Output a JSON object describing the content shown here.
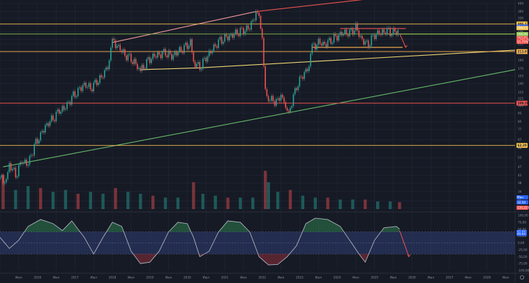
{
  "chart_data": [
    {
      "type": "candlestick",
      "scale": "log",
      "x_range": [
        "2015-01",
        "2028-10"
      ],
      "y_range": [
        27,
        400
      ],
      "grid": true,
      "colors": {
        "up": "#26a69a",
        "down": "#ef5350",
        "background": "#161a25",
        "grid": "#232838"
      },
      "x_ticks": [
        {
          "x": "2015-01",
          "label": "2015"
        },
        {
          "x": "2015-07",
          "label": "Июл"
        },
        {
          "x": "2016-01",
          "label": "2016"
        },
        {
          "x": "2016-07",
          "label": "Июл"
        },
        {
          "x": "2017-01",
          "label": "2017"
        },
        {
          "x": "2017-07",
          "label": "Июл"
        },
        {
          "x": "2018-01",
          "label": "2018"
        },
        {
          "x": "2018-07",
          "label": "Июл"
        },
        {
          "x": "2019-01",
          "label": "2019"
        },
        {
          "x": "2019-07",
          "label": "Июл"
        },
        {
          "x": "2020-01",
          "label": "2020"
        },
        {
          "x": "2020-07",
          "label": "Июл"
        },
        {
          "x": "2021-01",
          "label": "2021"
        },
        {
          "x": "2021-07",
          "label": "Июл"
        },
        {
          "x": "2022-01",
          "label": "2022"
        },
        {
          "x": "2022-07",
          "label": "Июл"
        },
        {
          "x": "2023-01",
          "label": "2023"
        },
        {
          "x": "2023-07",
          "label": "Июл"
        },
        {
          "x": "2024-01",
          "label": "2024"
        },
        {
          "x": "2024-07",
          "label": "Июл"
        },
        {
          "x": "2025-01",
          "label": "2025"
        },
        {
          "x": "2025-07",
          "label": "Июл"
        },
        {
          "x": "2026-01",
          "label": "2026"
        },
        {
          "x": "2026-07",
          "label": "Июл"
        },
        {
          "x": "2027-01",
          "label": "2027"
        },
        {
          "x": "2027-07",
          "label": "Июл"
        },
        {
          "x": "2028-01",
          "label": "2028"
        },
        {
          "x": "2028-07",
          "label": "Июл"
        }
      ],
      "y_ticks": [
        "400",
        "360",
        "330",
        "300",
        "275",
        "250",
        "235",
        "210",
        "190",
        "170",
        "155",
        "140",
        "125",
        "115",
        "105",
        "95",
        "85",
        "77",
        "67",
        "60",
        "53",
        "47",
        "42",
        "38",
        "34",
        "30",
        "27,50"
      ],
      "price_levels": [
        {
          "value": 306.12,
          "label": "306,12",
          "color": "#f2c14e",
          "style": "solid"
        },
        {
          "value": 268.0,
          "label": "",
          "color": "#8bc34a",
          "style": "solid"
        },
        {
          "value": 213.03,
          "label": "213,03",
          "color": "#ffb74d",
          "style": "solid"
        },
        {
          "value": 108.28,
          "label": "108,28",
          "color": "#ef5350",
          "style": "solid"
        },
        {
          "value": 62.2,
          "label": "62,20",
          "color": "#f2c14e",
          "style": "solid"
        }
      ],
      "price_badges": [
        {
          "value": 295.0,
          "label": "Макс",
          "color": "#2962ff"
        },
        {
          "value": 290.0,
          "label": "288,11",
          "color": "#f2c14e"
        },
        {
          "value": 268.0,
          "label": "268,00",
          "color": "#8bc34a"
        },
        {
          "value": 254.0,
          "label": "262,91",
          "color": "#ef5350"
        },
        {
          "value": 248.0,
          "label": "+241,296",
          "color": "#ef5350"
        },
        {
          "value": 242.0,
          "label": "11,75%",
          "color": "#ef5350"
        },
        {
          "value": 31.5,
          "label": "Мин",
          "color": "#2962ff"
        },
        {
          "value": 29.5,
          "label": "32,50",
          "color": "#2962ff"
        },
        {
          "value": 27.5,
          "label": "135,22 M",
          "color": "#ef5350"
        }
      ],
      "trendlines": [
        {
          "from": [
            "2018-01",
            240
          ],
          "to": [
            "2021-11",
            360
          ],
          "color": "#ef9a9a"
        },
        {
          "from": [
            "2021-11",
            360
          ],
          "to": [
            "2025-07",
            440
          ],
          "color": "#ef5350"
        },
        {
          "from": [
            "2018-10",
            168
          ],
          "to": [
            "2020-05",
            172
          ],
          "color": "#f2d675"
        },
        {
          "from": [
            "2020-05",
            172
          ],
          "to": [
            "2028-10",
            217
          ],
          "color": "#f2d675"
        },
        {
          "from": [
            "2015-02",
            47
          ],
          "to": [
            "2028-10",
            168
          ],
          "color": "#66bb6a"
        },
        {
          "from": [
            "2023-05",
            225
          ],
          "to": [
            "2025-10",
            225
          ],
          "color": "#ffb74d"
        },
        {
          "from": [
            "2024-02",
            288
          ],
          "to": [
            "2025-11",
            288
          ],
          "color": "#ef5350"
        },
        {
          "from": [
            "2025-05",
            268
          ],
          "to": [
            "2028-10",
            268
          ],
          "color": "#8bc34a"
        }
      ],
      "price_series": [
        [
          "2015-01",
          40
        ],
        [
          "2015-03",
          38
        ],
        [
          "2015-04",
          48
        ],
        [
          "2015-06",
          42
        ],
        [
          "2015-08",
          52
        ],
        [
          "2015-10",
          50
        ],
        [
          "2015-12",
          62
        ],
        [
          "2016-02",
          70
        ],
        [
          "2016-04",
          80
        ],
        [
          "2016-06",
          88
        ],
        [
          "2016-08",
          100
        ],
        [
          "2016-10",
          105
        ],
        [
          "2016-12",
          118
        ],
        [
          "2017-02",
          125
        ],
        [
          "2017-04",
          135
        ],
        [
          "2017-06",
          130
        ],
        [
          "2017-08",
          145
        ],
        [
          "2017-10",
          160
        ],
        [
          "2017-12",
          190
        ],
        [
          "2018-01",
          240
        ],
        [
          "2018-03",
          220
        ],
        [
          "2018-05",
          200
        ],
        [
          "2018-07",
          195
        ],
        [
          "2018-09",
          180
        ],
        [
          "2018-10",
          168
        ],
        [
          "2018-12",
          185
        ],
        [
          "2019-02",
          195
        ],
        [
          "2019-04",
          200
        ],
        [
          "2019-06",
          210
        ],
        [
          "2019-08",
          205
        ],
        [
          "2019-10",
          218
        ],
        [
          "2019-12",
          225
        ],
        [
          "2020-02",
          235
        ],
        [
          "2020-03",
          180
        ],
        [
          "2020-05",
          172
        ],
        [
          "2020-07",
          200
        ],
        [
          "2020-09",
          225
        ],
        [
          "2020-11",
          245
        ],
        [
          "2021-01",
          250
        ],
        [
          "2021-03",
          255
        ],
        [
          "2021-05",
          270
        ],
        [
          "2021-07",
          285
        ],
        [
          "2021-09",
          300
        ],
        [
          "2021-11",
          360
        ],
        [
          "2021-12",
          320
        ],
        [
          "2022-01",
          240
        ],
        [
          "2022-02",
          130
        ],
        [
          "2022-03",
          118
        ],
        [
          "2022-05",
          112
        ],
        [
          "2022-07",
          122
        ],
        [
          "2022-08",
          104
        ],
        [
          "2022-09",
          92
        ],
        [
          "2022-10",
          100
        ],
        [
          "2022-12",
          135
        ],
        [
          "2023-02",
          160
        ],
        [
          "2023-04",
          180
        ],
        [
          "2023-05",
          225
        ],
        [
          "2023-07",
          235
        ],
        [
          "2023-09",
          228
        ],
        [
          "2023-11",
          245
        ],
        [
          "2024-01",
          265
        ],
        [
          "2024-03",
          280
        ],
        [
          "2024-05",
          275
        ],
        [
          "2024-07",
          288
        ],
        [
          "2024-09",
          240
        ],
        [
          "2024-11",
          230
        ],
        [
          "2025-01",
          270
        ],
        [
          "2025-03",
          280
        ],
        [
          "2025-05",
          285
        ],
        [
          "2025-07",
          270
        ],
        [
          "2025-09",
          275
        ]
      ],
      "projection": [
        [
          "2025-09",
          270
        ],
        [
          "2025-11",
          225
        ]
      ],
      "volume_series": [
        [
          "2015-02",
          0.9
        ],
        [
          "2015-06",
          0.5
        ],
        [
          "2015-10",
          0.6
        ],
        [
          "2016-02",
          0.55
        ],
        [
          "2016-06",
          0.45
        ],
        [
          "2016-10",
          0.5
        ],
        [
          "2017-02",
          0.4
        ],
        [
          "2017-06",
          0.45
        ],
        [
          "2017-10",
          0.4
        ],
        [
          "2018-02",
          0.55
        ],
        [
          "2018-06",
          0.45
        ],
        [
          "2018-10",
          0.4
        ],
        [
          "2019-02",
          0.35
        ],
        [
          "2019-06",
          0.3
        ],
        [
          "2019-10",
          0.3
        ],
        [
          "2020-03",
          0.7
        ],
        [
          "2020-06",
          0.4
        ],
        [
          "2020-10",
          0.35
        ],
        [
          "2021-02",
          0.3
        ],
        [
          "2021-06",
          0.3
        ],
        [
          "2021-10",
          0.3
        ],
        [
          "2022-02",
          1.0
        ],
        [
          "2022-03",
          0.7
        ],
        [
          "2022-06",
          0.45
        ],
        [
          "2022-10",
          0.5
        ],
        [
          "2023-02",
          0.35
        ],
        [
          "2023-06",
          0.3
        ],
        [
          "2023-10",
          0.3
        ],
        [
          "2024-02",
          0.25
        ],
        [
          "2024-06",
          0.25
        ],
        [
          "2024-10",
          0.25
        ],
        [
          "2025-02",
          0.2
        ],
        [
          "2025-06",
          0.2
        ],
        [
          "2025-09",
          0.18
        ]
      ]
    },
    {
      "type": "line",
      "panel": "oscillator",
      "y_range": [
        -100,
        100
      ],
      "y_ticks": [
        "100,00",
        "75,00",
        "50,00",
        "25,00",
        "0,00",
        "-25,00",
        "-50,00",
        "-75,00",
        "-100,00"
      ],
      "bands": {
        "upper": 40,
        "lower": -40,
        "fill": "#2f3e73"
      },
      "badges": [
        {
          "value": 40,
          "label": "41,04"
        },
        {
          "value": 33,
          "label": "40,04"
        }
      ],
      "series": [
        [
          "2015-01",
          20
        ],
        [
          "2015-04",
          -20
        ],
        [
          "2015-07",
          10
        ],
        [
          "2015-10",
          60
        ],
        [
          "2016-02",
          85
        ],
        [
          "2016-06",
          70
        ],
        [
          "2016-09",
          45
        ],
        [
          "2016-12",
          80
        ],
        [
          "2017-04",
          20
        ],
        [
          "2017-07",
          -40
        ],
        [
          "2017-10",
          20
        ],
        [
          "2018-01",
          75
        ],
        [
          "2018-04",
          60
        ],
        [
          "2018-07",
          -30
        ],
        [
          "2018-10",
          -75
        ],
        [
          "2019-01",
          -70
        ],
        [
          "2019-04",
          -30
        ],
        [
          "2019-07",
          40
        ],
        [
          "2019-10",
          75
        ],
        [
          "2020-01",
          70
        ],
        [
          "2020-03",
          20
        ],
        [
          "2020-05",
          -50
        ],
        [
          "2020-08",
          -30
        ],
        [
          "2020-11",
          40
        ],
        [
          "2021-02",
          80
        ],
        [
          "2021-06",
          75
        ],
        [
          "2021-09",
          40
        ],
        [
          "2021-12",
          -50
        ],
        [
          "2022-03",
          -80
        ],
        [
          "2022-06",
          -78
        ],
        [
          "2022-09",
          -50
        ],
        [
          "2022-12",
          -10
        ],
        [
          "2023-03",
          70
        ],
        [
          "2023-06",
          90
        ],
        [
          "2023-10",
          85
        ],
        [
          "2024-02",
          60
        ],
        [
          "2024-05",
          10
        ],
        [
          "2024-08",
          -40
        ],
        [
          "2024-10",
          -70
        ],
        [
          "2025-01",
          10
        ],
        [
          "2025-04",
          55
        ],
        [
          "2025-08",
          60
        ],
        [
          "2025-09",
          50
        ]
      ],
      "projection": [
        [
          "2025-09",
          45
        ],
        [
          "2025-12",
          -50
        ]
      ]
    }
  ]
}
